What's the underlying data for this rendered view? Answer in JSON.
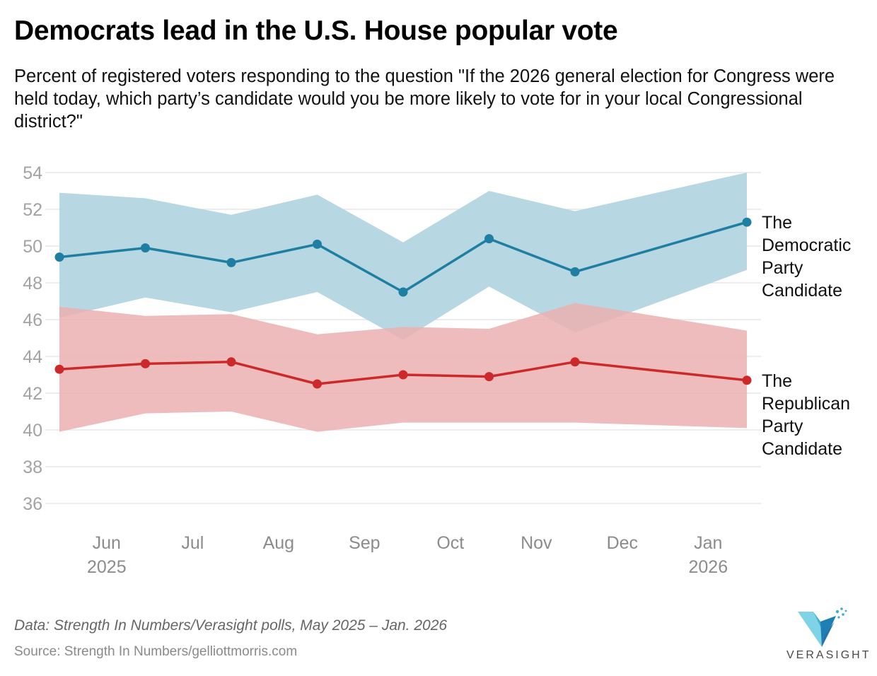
{
  "header": {
    "title": "Democrats lead in the U.S. House popular vote",
    "subtitle": "Percent of registered voters responding to the question \"If the 2026 general election for Congress were held today, which party’s candidate would you be more likely to vote for in your local Congressional district?\""
  },
  "footer": {
    "data_note": "Data: Strength In Numbers/Verasight polls, May 2025 – Jan. 2026",
    "source": "Source: Strength In Numbers/gelliottmorris.com",
    "logo_text": "VERASIGHT"
  },
  "colors": {
    "dem": "#1f7fa3",
    "dem_band": "#b7d7e2",
    "rep": "#cc2a2a",
    "rep_band": "#ebb0b0",
    "grid": "#e6e6e6"
  },
  "chart_data": {
    "type": "line",
    "title": "Democrats lead in the U.S. House popular vote",
    "ylim": [
      36,
      54
    ],
    "yticks": [
      36,
      38,
      40,
      42,
      44,
      46,
      48,
      50,
      52,
      54
    ],
    "grid": true,
    "xlim": [
      0,
      8.4
    ],
    "x": [
      0.05,
      1.05,
      2.05,
      3.05,
      4.05,
      5.05,
      6.05,
      7.05,
      8.05
    ],
    "xticks": [
      {
        "pos": 0.6,
        "label": "Jun",
        "year": "2025"
      },
      {
        "pos": 1.6,
        "label": "Jul",
        "year": ""
      },
      {
        "pos": 2.6,
        "label": "Aug",
        "year": ""
      },
      {
        "pos": 3.6,
        "label": "Sep",
        "year": ""
      },
      {
        "pos": 4.6,
        "label": "Oct",
        "year": ""
      },
      {
        "pos": 5.6,
        "label": "Nov",
        "year": ""
      },
      {
        "pos": 6.6,
        "label": "Dec",
        "year": ""
      },
      {
        "pos": 7.6,
        "label": "Jan",
        "year": "2026"
      }
    ],
    "series": [
      {
        "name": "The Democratic Party Candidate",
        "label_lines": [
          "The",
          "Democratic",
          "Party",
          "Candidate"
        ],
        "values": [
          49.4,
          49.9,
          49.1,
          50.1,
          47.5,
          50.4,
          48.6,
          null,
          51.3
        ],
        "upper": [
          52.9,
          52.6,
          51.7,
          52.8,
          50.2,
          53.0,
          51.9,
          null,
          54.0
        ],
        "lower": [
          46.1,
          47.2,
          46.4,
          47.5,
          44.9,
          47.8,
          45.3,
          null,
          48.7
        ]
      },
      {
        "name": "The Republican Party Candidate",
        "label_lines": [
          "The",
          "Republican",
          "Party",
          "Candidate"
        ],
        "values": [
          43.3,
          43.6,
          43.7,
          42.5,
          43.0,
          42.9,
          43.7,
          null,
          42.7
        ],
        "upper": [
          46.7,
          46.2,
          46.3,
          45.2,
          45.6,
          45.5,
          46.9,
          null,
          45.4
        ],
        "lower": [
          39.9,
          40.9,
          41.0,
          39.9,
          40.4,
          40.4,
          40.4,
          null,
          40.1
        ]
      }
    ]
  }
}
